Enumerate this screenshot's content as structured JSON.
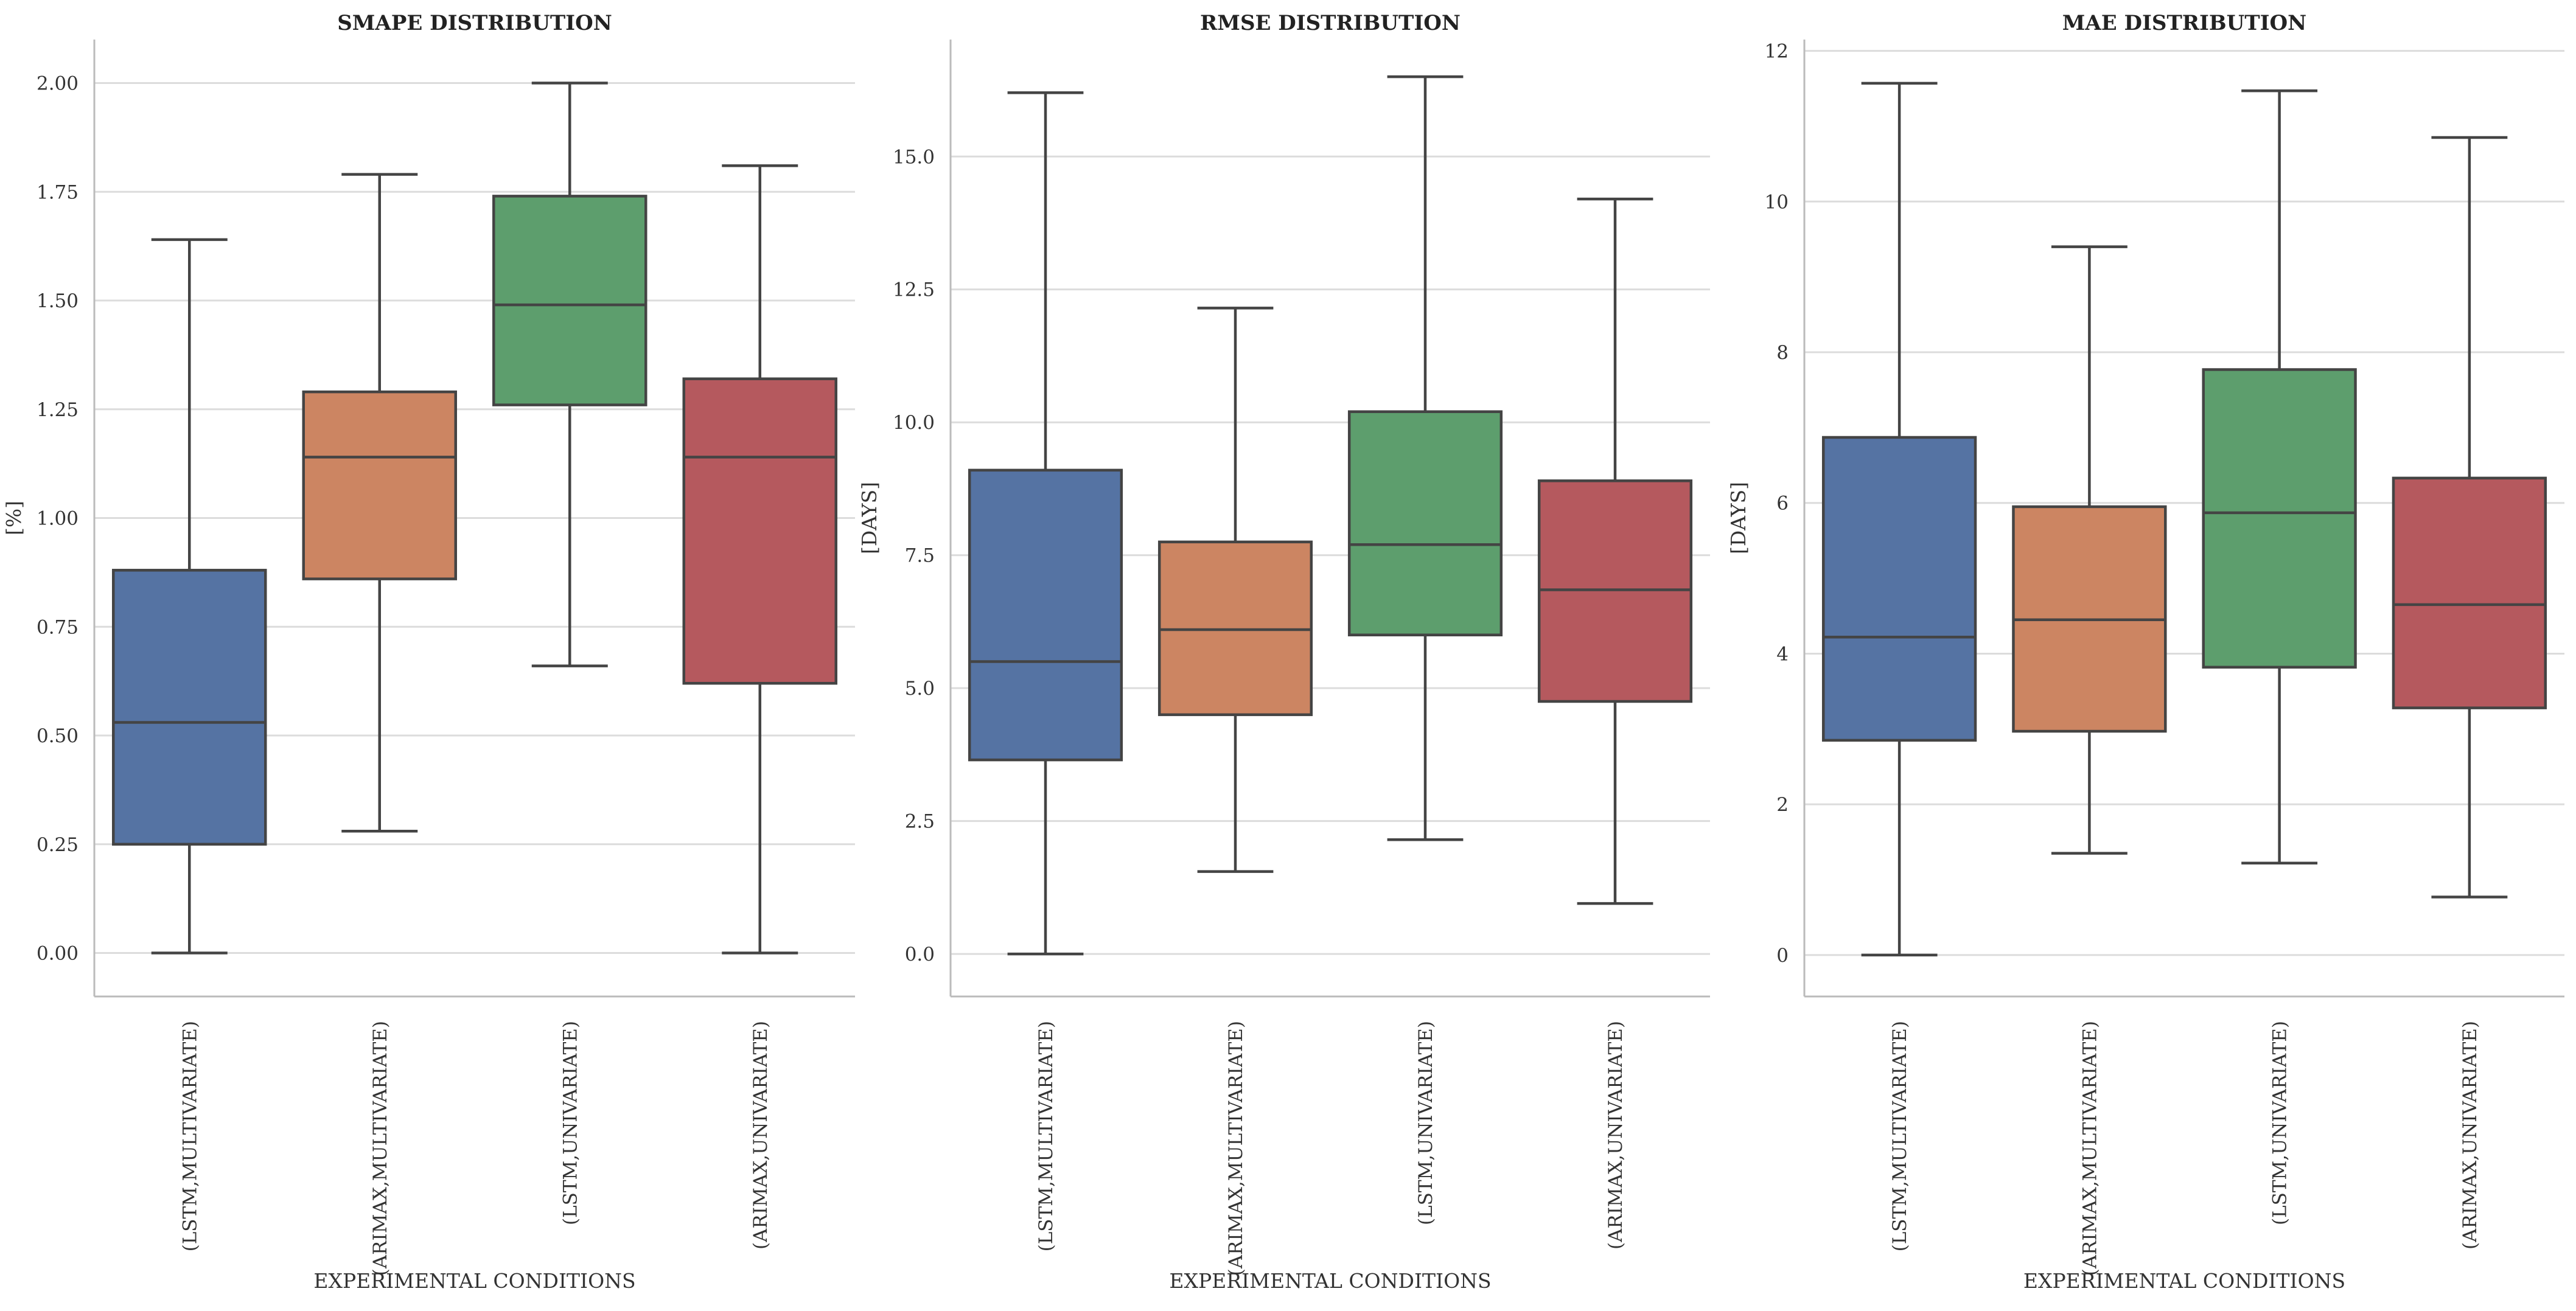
{
  "chart_data": [
    {
      "type": "box",
      "title": "SMAPE DISTRIBUTION",
      "xlabel": "EXPERIMENTAL CONDITIONS",
      "ylabel": "[%]",
      "ylim": [
        -0.1,
        2.1
      ],
      "yticks": [
        0,
        0.25,
        0.5,
        0.75,
        1.0,
        1.25,
        1.5,
        1.75,
        2.0
      ],
      "ytick_labels": [
        "0.00",
        "0.25",
        "0.50",
        "0.75",
        "1.00",
        "1.25",
        "1.50",
        "1.75",
        "2.00"
      ],
      "grid": true,
      "categories": [
        "(LSTM,MULTIVARIATE)",
        "(ARIMAX,MULTIVARIATE)",
        "(LSTM,UNIVARIATE)",
        "(ARIMAX,UNIVARIATE)"
      ],
      "boxes": [
        {
          "whisker_low": 0.0,
          "q1": 0.25,
          "median": 0.53,
          "q3": 0.88,
          "whisker_high": 1.64
        },
        {
          "whisker_low": 0.28,
          "q1": 0.86,
          "median": 1.14,
          "q3": 1.29,
          "whisker_high": 1.79
        },
        {
          "whisker_low": 0.66,
          "q1": 1.26,
          "median": 1.49,
          "q3": 1.74,
          "whisker_high": 2.0
        },
        {
          "whisker_low": 0.0,
          "q1": 0.62,
          "median": 1.14,
          "q3": 1.32,
          "whisker_high": 1.81
        }
      ]
    },
    {
      "type": "box",
      "title": "RMSE DISTRIBUTION",
      "xlabel": "EXPERIMENTAL CONDITIONS",
      "ylabel": "[DAYS]",
      "ylim": [
        -0.8,
        17.2
      ],
      "yticks": [
        0,
        2.5,
        5,
        7.5,
        10,
        12.5,
        15
      ],
      "ytick_labels": [
        "0.0",
        "2.5",
        "5.0",
        "7.5",
        "10.0",
        "12.5",
        "15.0"
      ],
      "grid": true,
      "categories": [
        "(LSTM,MULTIVARIATE)",
        "(ARIMAX,MULTIVARIATE)",
        "(LSTM,UNIVARIATE)",
        "(ARIMAX,UNIVARIATE)"
      ],
      "boxes": [
        {
          "whisker_low": 0.0,
          "q1": 3.65,
          "median": 5.5,
          "q3": 9.1,
          "whisker_high": 16.2
        },
        {
          "whisker_low": 1.55,
          "q1": 4.5,
          "median": 6.1,
          "q3": 7.75,
          "whisker_high": 12.15
        },
        {
          "whisker_low": 2.15,
          "q1": 6.0,
          "median": 7.7,
          "q3": 10.2,
          "whisker_high": 16.5
        },
        {
          "whisker_low": 0.95,
          "q1": 4.75,
          "median": 6.85,
          "q3": 8.9,
          "whisker_high": 14.2
        }
      ]
    },
    {
      "type": "box",
      "title": "MAE DISTRIBUTION",
      "xlabel": "EXPERIMENTAL CONDITIONS",
      "ylabel": "[DAYS]",
      "ylim": [
        -0.55,
        12.15
      ],
      "yticks": [
        0,
        2,
        4,
        6,
        8,
        10,
        12
      ],
      "ytick_labels": [
        "0",
        "2",
        "4",
        "6",
        "8",
        "10",
        "12"
      ],
      "grid": true,
      "categories": [
        "(LSTM,MULTIVARIATE)",
        "(ARIMAX,MULTIVARIATE)",
        "(LSTM,UNIVARIATE)",
        "(ARIMAX,UNIVARIATE)"
      ],
      "boxes": [
        {
          "whisker_low": 0.0,
          "q1": 2.85,
          "median": 4.22,
          "q3": 6.87,
          "whisker_high": 11.57
        },
        {
          "whisker_low": 1.35,
          "q1": 2.97,
          "median": 4.45,
          "q3": 5.95,
          "whisker_high": 9.4
        },
        {
          "whisker_low": 1.22,
          "q1": 3.82,
          "median": 5.87,
          "q3": 7.77,
          "whisker_high": 11.47
        },
        {
          "whisker_low": 0.77,
          "q1": 3.28,
          "median": 4.65,
          "q3": 6.33,
          "whisker_high": 10.85
        }
      ]
    }
  ],
  "colors": {
    "series": [
      "#5573a3",
      "#cc8562",
      "#5d9e6d",
      "#b5595e"
    ],
    "edge": "#444444",
    "grid": "#dcdcdc",
    "spine": "#bbbbbb"
  }
}
